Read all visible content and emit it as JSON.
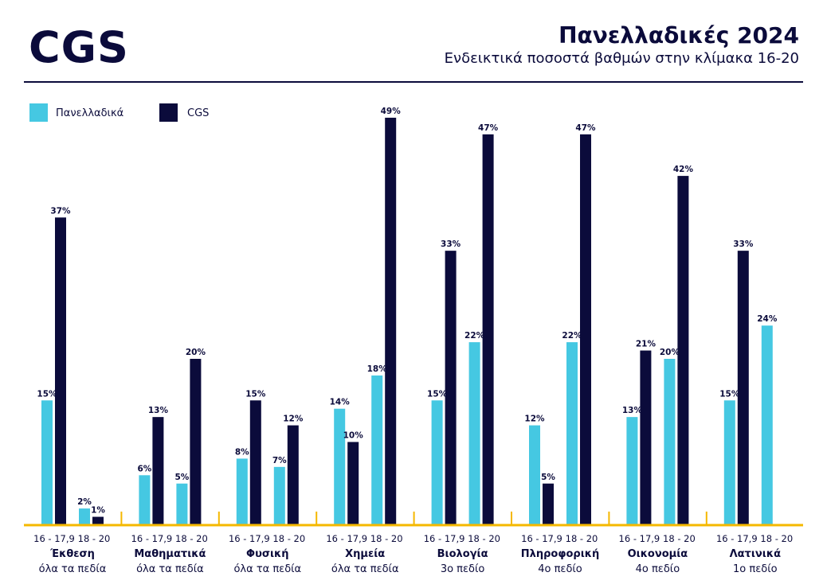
{
  "header": {
    "logo": "CGS",
    "title": "Πανελλαδικές 2024",
    "subtitle": "Ενδεικτικά ποσοστά βαθμών στην κλίμακα 16-20"
  },
  "chart_data": {
    "type": "bar",
    "title": "Πανελλαδικές 2024",
    "subtitle": "Ενδεικτικά ποσοστά βαθμών στην κλίμακα 16-20",
    "legend_placement": "top-left",
    "grid": false,
    "ylim": [
      0,
      50
    ],
    "ranges": [
      "16 - 17,9",
      "18 - 20"
    ],
    "series": [
      {
        "name": "Πανελλαδικά",
        "color": "#45c8e2"
      },
      {
        "name": "CGS",
        "color": "#0b0b3b"
      }
    ],
    "axis_color": "#f5b800",
    "groups": [
      {
        "subject": "Έκθεση",
        "field": "όλα τα πεδία",
        "values": [
          [
            15,
            37
          ],
          [
            2,
            1
          ]
        ]
      },
      {
        "subject": "Μαθηματικά",
        "field": "όλα τα πεδία",
        "values": [
          [
            6,
            13
          ],
          [
            5,
            20
          ]
        ]
      },
      {
        "subject": "Φυσική",
        "field": "όλα τα πεδία",
        "values": [
          [
            8,
            15
          ],
          [
            7,
            12
          ]
        ]
      },
      {
        "subject": "Χημεία",
        "field": "όλα τα πεδία",
        "values": [
          [
            14,
            10
          ],
          [
            18,
            49
          ]
        ]
      },
      {
        "subject": "Βιολογία",
        "field": "3ο πεδίο",
        "values": [
          [
            15,
            33
          ],
          [
            22,
            47
          ]
        ]
      },
      {
        "subject": "Πληροφορική",
        "field": "4ο πεδίο",
        "values": [
          [
            12,
            5
          ],
          [
            22,
            47
          ]
        ]
      },
      {
        "subject": "Οικονομία",
        "field": "4ο πεδίο",
        "values": [
          [
            13,
            21
          ],
          [
            20,
            42
          ]
        ]
      },
      {
        "subject": "Λατινικά",
        "field": "1ο πεδίο",
        "values": [
          [
            15,
            33
          ],
          [
            24,
            null
          ]
        ]
      }
    ]
  }
}
